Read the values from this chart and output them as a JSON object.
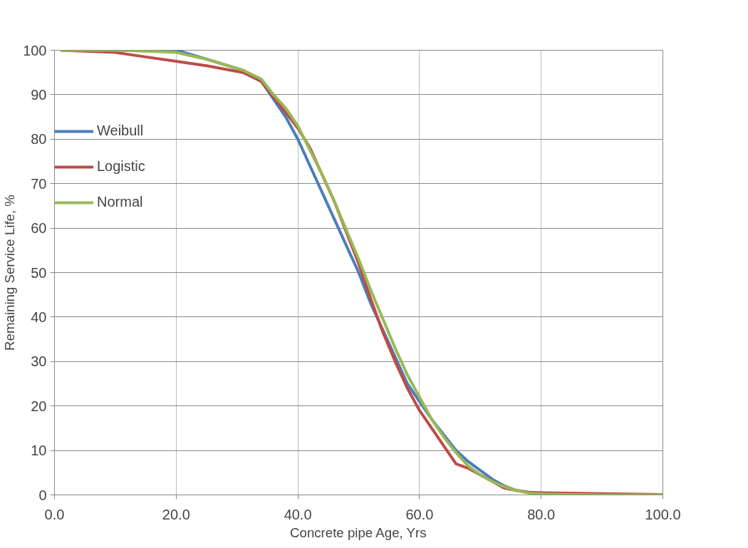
{
  "chart_data": {
    "type": "line",
    "xlabel": "Concrete pipe Age, Yrs",
    "ylabel": "Remaining Service Life, %",
    "xlim": [
      0,
      100
    ],
    "ylim": [
      0,
      100
    ],
    "xticks": [
      {
        "value": 0,
        "label": "0.0"
      },
      {
        "value": 20,
        "label": "20.0"
      },
      {
        "value": 40,
        "label": "40.0"
      },
      {
        "value": 60,
        "label": "60.0"
      },
      {
        "value": 80,
        "label": "80.0"
      },
      {
        "value": 100,
        "label": "100.0"
      }
    ],
    "yticks": [
      0,
      10,
      20,
      30,
      40,
      50,
      60,
      70,
      80,
      90,
      100
    ],
    "grid": true,
    "legend": "top left",
    "marker": "none",
    "line_style": "solid",
    "x": [
      1,
      10,
      15,
      20,
      25,
      31,
      34,
      36,
      38,
      40,
      42,
      44,
      46,
      48,
      50,
      52,
      54,
      56,
      58,
      60,
      62,
      64,
      66,
      68,
      70,
      72,
      74,
      76,
      78,
      80,
      90,
      100
    ],
    "series": [
      {
        "name": "Weibull",
        "color": "#4a7ebb",
        "x": [
          1,
          10,
          15,
          20,
          25,
          31,
          34,
          36,
          38,
          40,
          42,
          44,
          46,
          48,
          50,
          52,
          54,
          56,
          58,
          60,
          62,
          64,
          66,
          68,
          70,
          72,
          74,
          76,
          78
        ],
        "values": [
          100,
          100,
          100,
          100,
          98,
          95.5,
          93,
          89,
          85,
          80,
          74,
          68,
          62,
          56,
          50,
          43,
          37,
          31,
          25,
          21,
          17,
          13.5,
          10,
          7.5,
          5.5,
          3.5,
          2,
          1,
          0.5
        ]
      },
      {
        "name": "Logistic",
        "color": "#be4b48",
        "values": [
          100,
          99.5,
          98.5,
          97.5,
          96.5,
          95,
          93,
          89.5,
          86,
          82.5,
          78,
          72,
          66,
          59,
          52,
          44,
          36.5,
          30,
          24,
          19,
          15,
          11,
          7,
          6,
          4.5,
          3,
          1.5,
          1,
          0.6,
          0.5,
          0.3,
          0.1
        ]
      },
      {
        "name": "Normal",
        "color": "#98b954",
        "values": [
          100,
          100,
          99.8,
          99.5,
          98,
          95.5,
          93.5,
          90,
          87,
          83,
          77.5,
          72,
          66,
          59.5,
          53,
          46,
          39.5,
          33,
          27,
          22,
          17,
          13,
          9.5,
          6.5,
          4.5,
          3,
          1.8,
          1,
          0.4,
          0.2,
          0,
          0
        ]
      }
    ]
  }
}
